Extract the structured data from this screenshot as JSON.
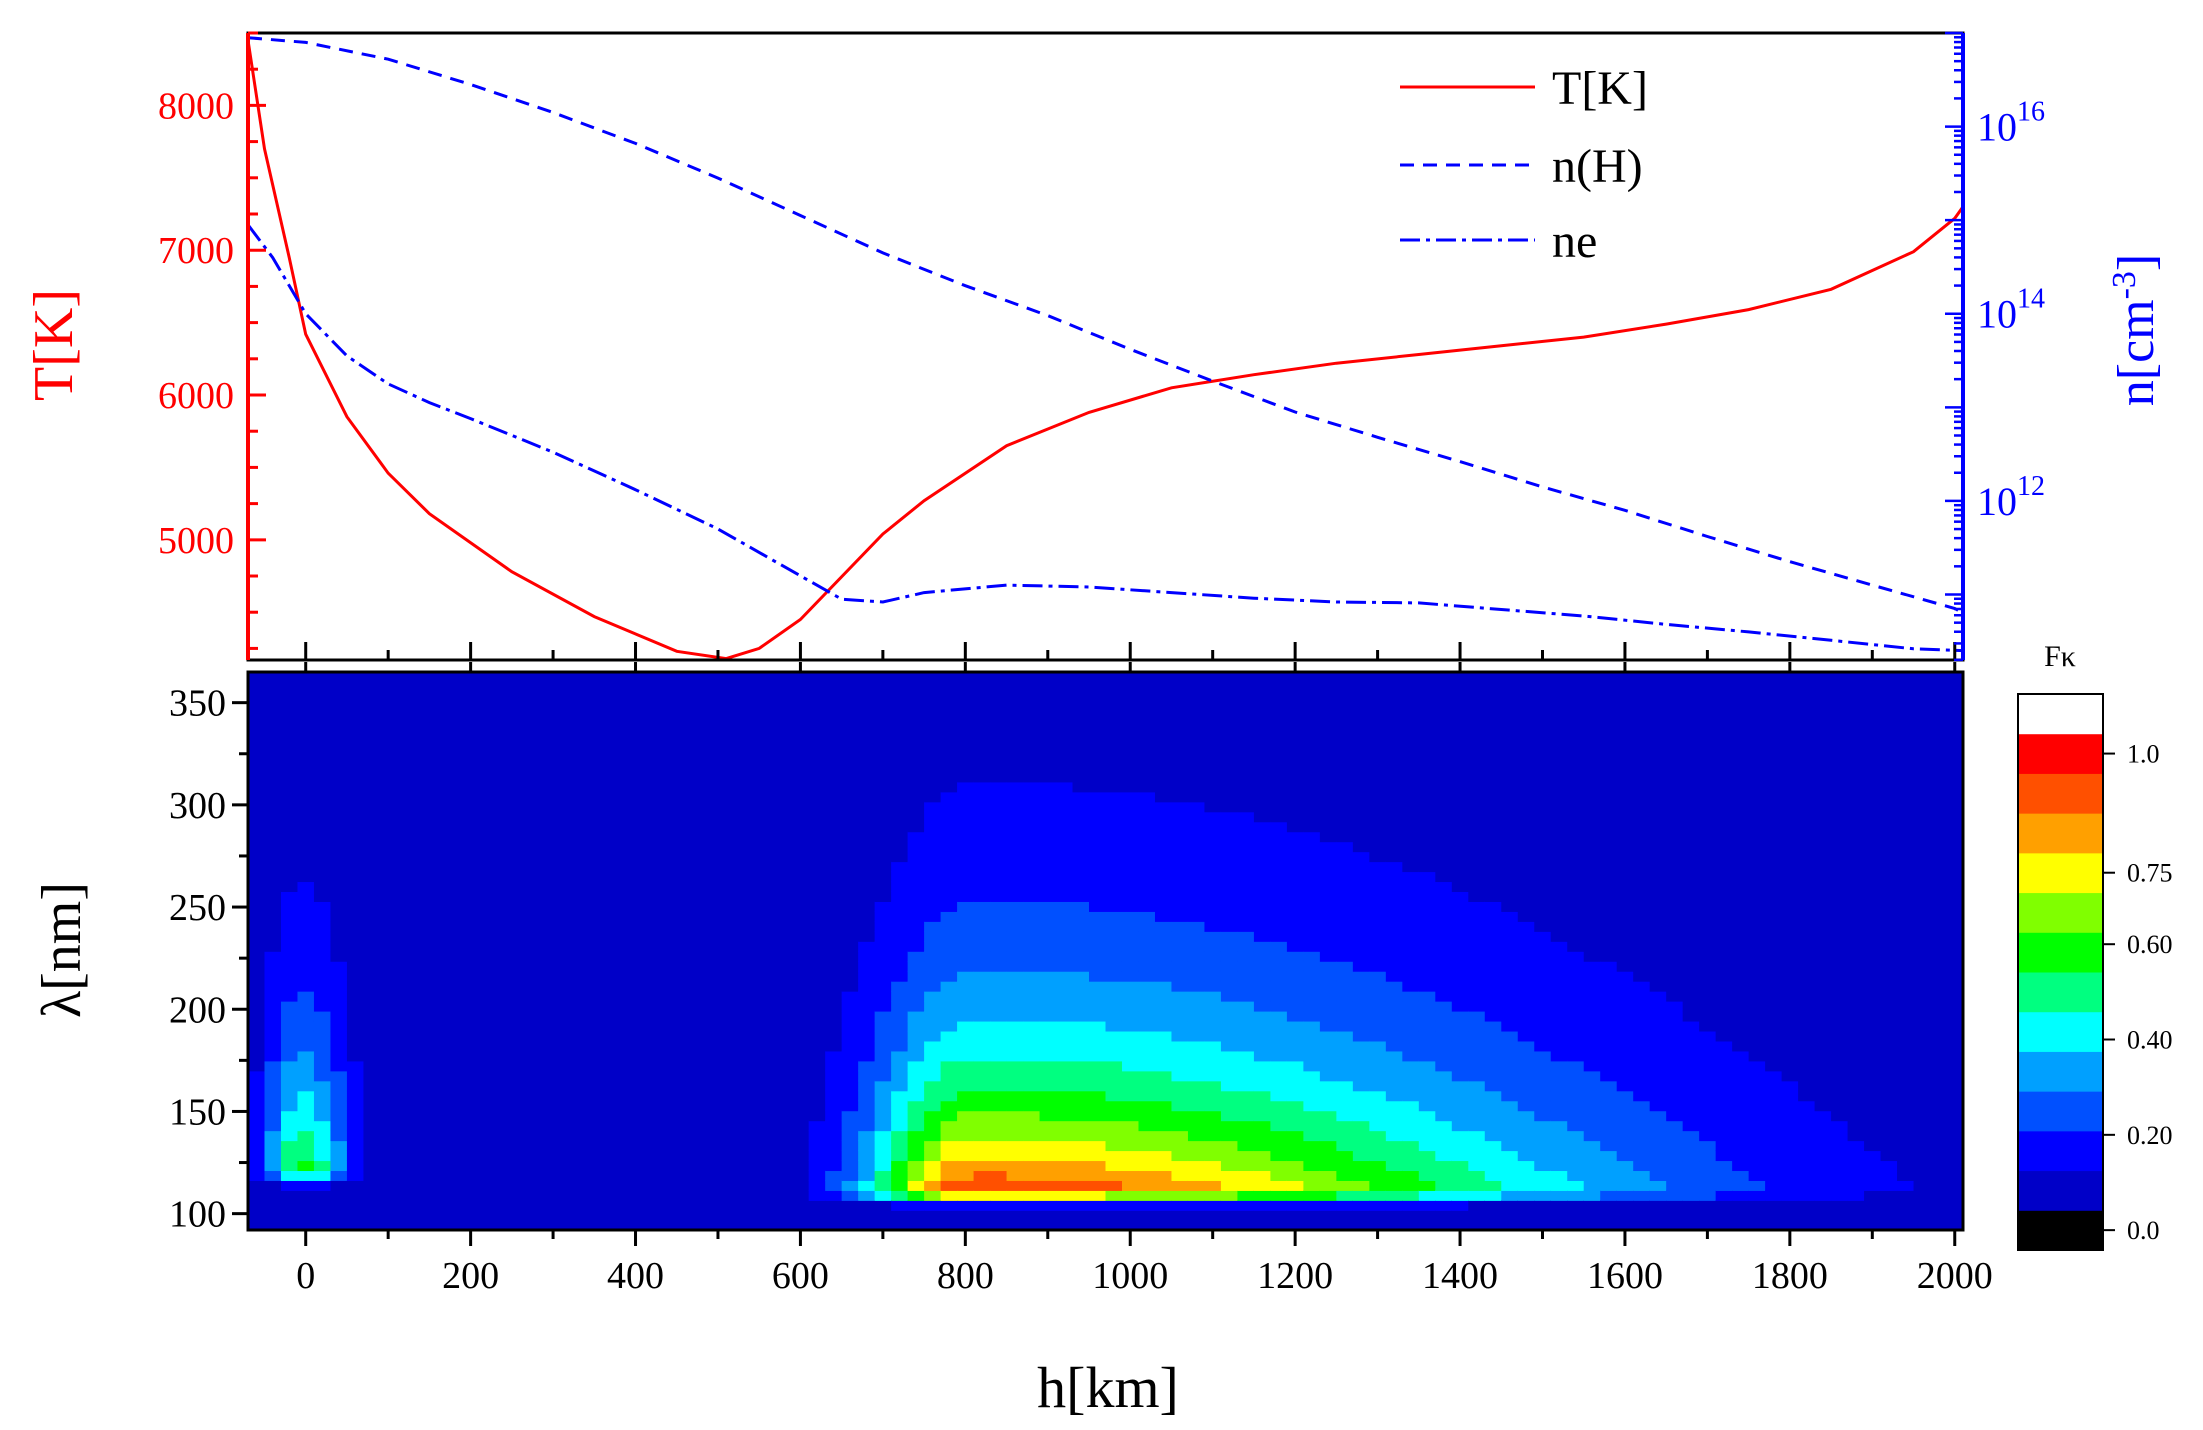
{
  "chart_data": [
    {
      "type": "line",
      "panel": "top",
      "x_range": [
        -70,
        2010
      ],
      "left_axis": {
        "label": "T[K]",
        "color": "#ff0000",
        "range": [
          4170,
          8500
        ],
        "ticks": [
          5000,
          6000,
          7000,
          8000
        ],
        "tick_labels": [
          "5000",
          "6000",
          "7000",
          "8000"
        ]
      },
      "right_axis": {
        "label_base": "n[cm",
        "label_sup": "-3",
        "label_end": "]",
        "color": "#0000ff",
        "scale": "log",
        "log_range": [
          10.3,
          17.0
        ],
        "ticks": [
          12,
          14,
          16
        ],
        "tick_label_base": "10",
        "tick_label_exponents": [
          "12",
          "14",
          "16"
        ]
      },
      "legend": {
        "position": "top-right",
        "entries": [
          "T[K]",
          "n(H)",
          "ne"
        ]
      },
      "series": [
        {
          "name": "T[K]",
          "axis": "left",
          "style": "solid",
          "color": "#ff0000",
          "x": [
            -70,
            -50,
            -20,
            0,
            50,
            100,
            150,
            250,
            350,
            450,
            510,
            550,
            600,
            700,
            750,
            850,
            950,
            1050,
            1150,
            1250,
            1350,
            1450,
            1550,
            1650,
            1750,
            1850,
            1950,
            2000,
            2010
          ],
          "y": [
            8450,
            7700,
            6950,
            6420,
            5850,
            5460,
            5180,
            4780,
            4470,
            4230,
            4180,
            4250,
            4450,
            5040,
            5270,
            5650,
            5880,
            6050,
            6140,
            6220,
            6280,
            6340,
            6400,
            6490,
            6590,
            6730,
            6990,
            7220,
            7300
          ]
        },
        {
          "name": "n(H)",
          "axis": "right",
          "style": "dashed",
          "color": "#0000ff",
          "x": [
            -70,
            0,
            100,
            200,
            300,
            400,
            500,
            600,
            700,
            800,
            900,
            1000,
            1100,
            1200,
            1300,
            1400,
            1500,
            1600,
            1700,
            1800,
            1900,
            2000,
            2010
          ],
          "y": [
            16.95,
            16.9,
            16.72,
            16.45,
            16.15,
            15.82,
            15.45,
            15.05,
            14.65,
            14.3,
            13.98,
            13.62,
            13.28,
            12.95,
            12.68,
            12.42,
            12.15,
            11.9,
            11.62,
            11.35,
            11.1,
            10.85,
            10.8
          ]
        },
        {
          "name": "ne",
          "axis": "right",
          "style": "dashdot",
          "color": "#0000ff",
          "x": [
            -70,
            -40,
            0,
            50,
            100,
            150,
            200,
            300,
            400,
            500,
            560,
            600,
            650,
            700,
            750,
            850,
            950,
            1050,
            1150,
            1250,
            1350,
            1450,
            1550,
            1650,
            1750,
            1850,
            1950,
            2010
          ],
          "y": [
            14.95,
            14.6,
            14.0,
            13.55,
            13.25,
            13.05,
            12.88,
            12.52,
            12.12,
            11.7,
            11.4,
            11.2,
            10.95,
            10.92,
            11.02,
            11.1,
            11.08,
            11.02,
            10.96,
            10.92,
            10.91,
            10.84,
            10.77,
            10.68,
            10.6,
            10.51,
            10.42,
            10.4
          ]
        }
      ]
    },
    {
      "type": "heatmap",
      "panel": "bottom",
      "subtype": "filled-contour",
      "xlabel": "h[km]",
      "ylabel": "λ[nm]",
      "x_range": [
        -70,
        2010
      ],
      "y_range": [
        92,
        365
      ],
      "x_ticks": [
        0,
        200,
        400,
        600,
        800,
        1000,
        1200,
        1400,
        1600,
        1800,
        2000
      ],
      "x_tick_labels": [
        "0",
        "200",
        "400",
        "600",
        "800",
        "1000",
        "1200",
        "1400",
        "1600",
        "1800",
        "2000"
      ],
      "y_ticks": [
        100,
        150,
        200,
        250,
        300,
        350
      ],
      "y_tick_labels": [
        "100",
        "150",
        "200",
        "250",
        "300",
        "350"
      ],
      "colorbar": {
        "title": "Fκ",
        "range": [
          0.0,
          1.0
        ],
        "tick_values": [
          0.0,
          0.2,
          0.4,
          0.6,
          0.75,
          1.0
        ],
        "tick_labels": [
          "0.0",
          "0.20",
          "0.40",
          "0.60",
          "0.75",
          "1.0"
        ],
        "colors": [
          "#000000",
          "#0000c8",
          "#0000ff",
          "#0050ff",
          "#00a0ff",
          "#00ffff",
          "#00ff80",
          "#00ff00",
          "#80ff00",
          "#ffff00",
          "#ffa000",
          "#ff5000",
          "#ff0000",
          "#ffffff"
        ]
      },
      "background_value": 0.08,
      "blobs": [
        {
          "name": "low-layer-peak",
          "h": -5,
          "lambda": 120,
          "peak": 0.55,
          "h_width_left": 70,
          "h_width_right": 85,
          "lambda_width_up": 230,
          "lambda_width_down": 12
        },
        {
          "name": "mid-layer-peak",
          "h": 810,
          "lambda": 110,
          "peak": 0.93,
          "h_width_left": 190,
          "h_width_right": 1050,
          "lambda_width_up": 250,
          "lambda_width_down": 10
        }
      ]
    }
  ]
}
